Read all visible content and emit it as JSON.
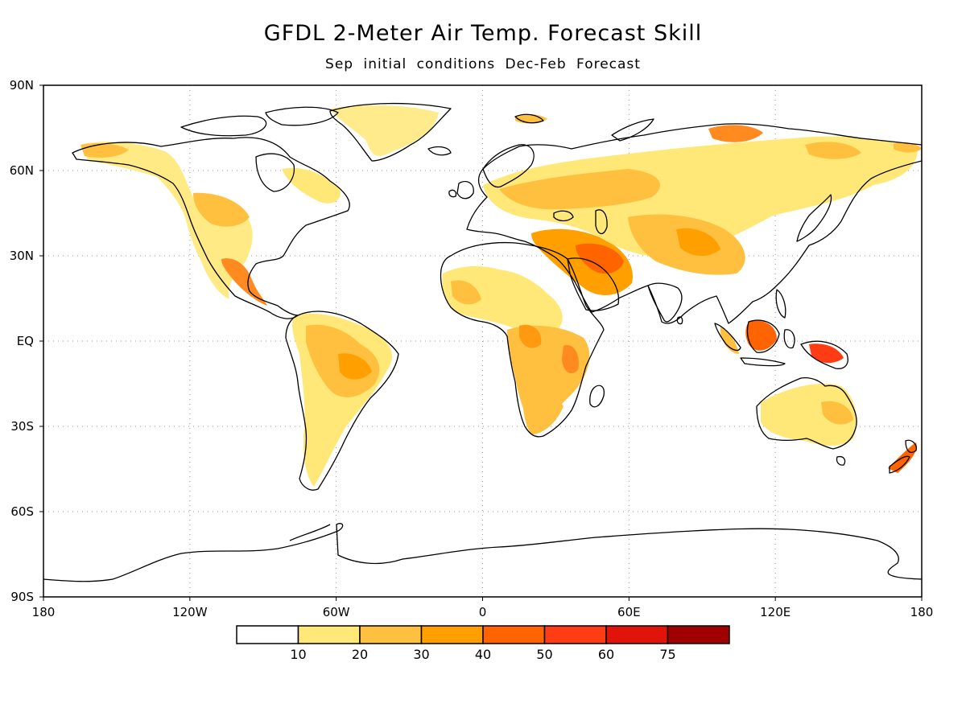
{
  "title": "GFDL 2-Meter Air Temp. Forecast Skill",
  "subtitle": "Sep initial conditions  Dec-Feb Forecast",
  "map": {
    "lon_range": [
      -180,
      180
    ],
    "lat_range": [
      -90,
      90
    ],
    "grid": true,
    "lat_labels": [
      "90N",
      "60N",
      "30N",
      "EQ",
      "30S",
      "60S",
      "90S"
    ],
    "lat_values": [
      90,
      60,
      30,
      0,
      -30,
      -60,
      -90
    ],
    "lon_labels": [
      "180",
      "120W",
      "60W",
      "0",
      "60E",
      "120E",
      "180"
    ],
    "lon_values": [
      -180,
      -120,
      -60,
      0,
      60,
      120,
      180
    ]
  },
  "colorbar": {
    "colors": [
      "#ffffff",
      "#ffe878",
      "#ffc040",
      "#ffa000",
      "#ff6400",
      "#ff3c14",
      "#e01408",
      "#a00000"
    ],
    "labels": [
      "10",
      "20",
      "30",
      "40",
      "50",
      "60",
      "75"
    ]
  }
}
